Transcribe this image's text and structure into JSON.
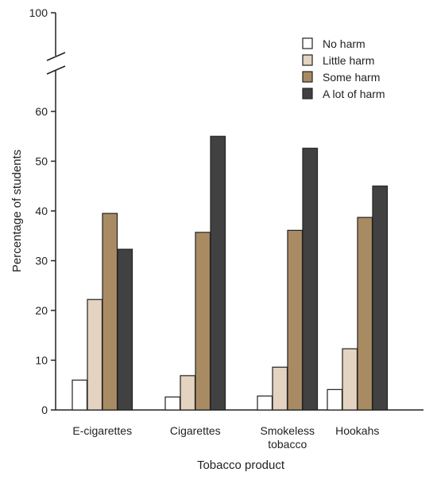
{
  "chart_data": {
    "type": "bar",
    "title": "",
    "xlabel": "Tobacco product",
    "ylabel": "Percentage of students",
    "ylim": [
      0,
      60
    ],
    "axis_break": true,
    "break_top_tick": 100,
    "yticks": [
      0,
      10,
      20,
      30,
      40,
      50,
      60
    ],
    "categories": [
      [
        "E-cigarettes"
      ],
      [
        "Cigarettes"
      ],
      [
        "Smokeless",
        "tobacco"
      ],
      [
        "Hookahs"
      ]
    ],
    "series": [
      {
        "name": "No harm",
        "color": "#ffffff",
        "values": [
          6.0,
          2.6,
          2.8,
          4.1
        ]
      },
      {
        "name": "Little harm",
        "color": "#e3d3c0",
        "values": [
          22.2,
          6.9,
          8.6,
          12.3
        ]
      },
      {
        "name": "Some harm",
        "color": "#a98b63",
        "values": [
          39.5,
          35.7,
          36.1,
          38.7
        ]
      },
      {
        "name": "A lot of harm",
        "color": "#414141",
        "values": [
          32.3,
          55.0,
          52.6,
          45.0
        ]
      }
    ],
    "legend_position": "top-right",
    "grid": false
  }
}
